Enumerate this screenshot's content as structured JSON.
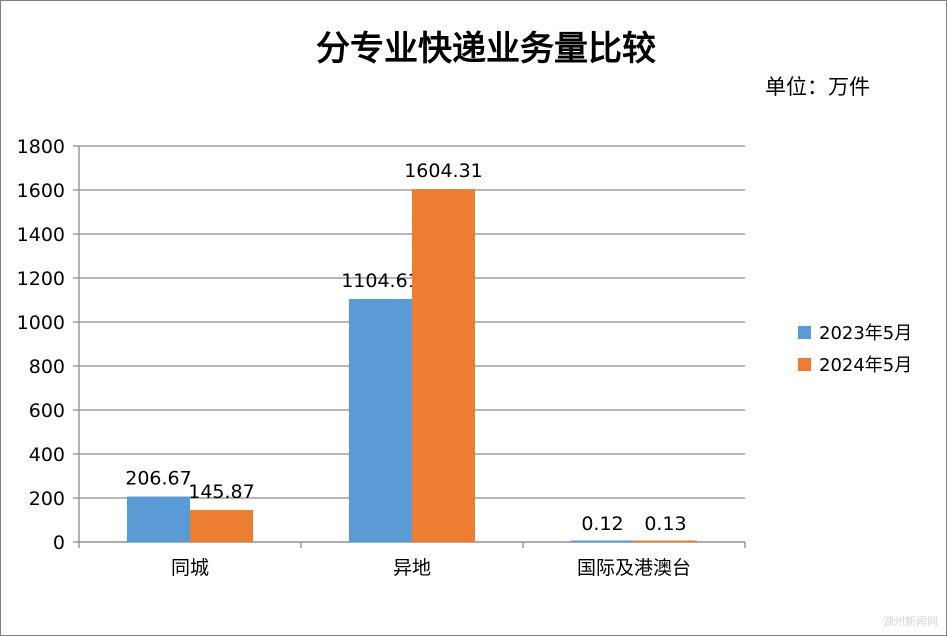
{
  "chart_data": {
    "type": "bar",
    "title": "分专业快递业务量比较",
    "unit": "单位：万件",
    "categories": [
      "同城",
      "异地",
      "国际及港澳台"
    ],
    "series": [
      {
        "name": "2023年5月",
        "values": [
          206.67,
          1104.61,
          0.12
        ],
        "labels": [
          "206.67",
          "1104.61",
          "0.12"
        ],
        "color": "#5b9bd5"
      },
      {
        "name": "2024年5月",
        "values": [
          145.87,
          1604.31,
          0.13
        ],
        "labels": [
          "145.87",
          "1604.31",
          "0.13"
        ],
        "color": "#ed7d31"
      }
    ],
    "yticks": [
      "0",
      "200",
      "400",
      "600",
      "800",
      "1000",
      "1200",
      "1400",
      "1600",
      "1800"
    ],
    "ylim": [
      0,
      1800
    ],
    "grid": true,
    "legend_position": "right"
  },
  "watermark": "湖州新闻网"
}
